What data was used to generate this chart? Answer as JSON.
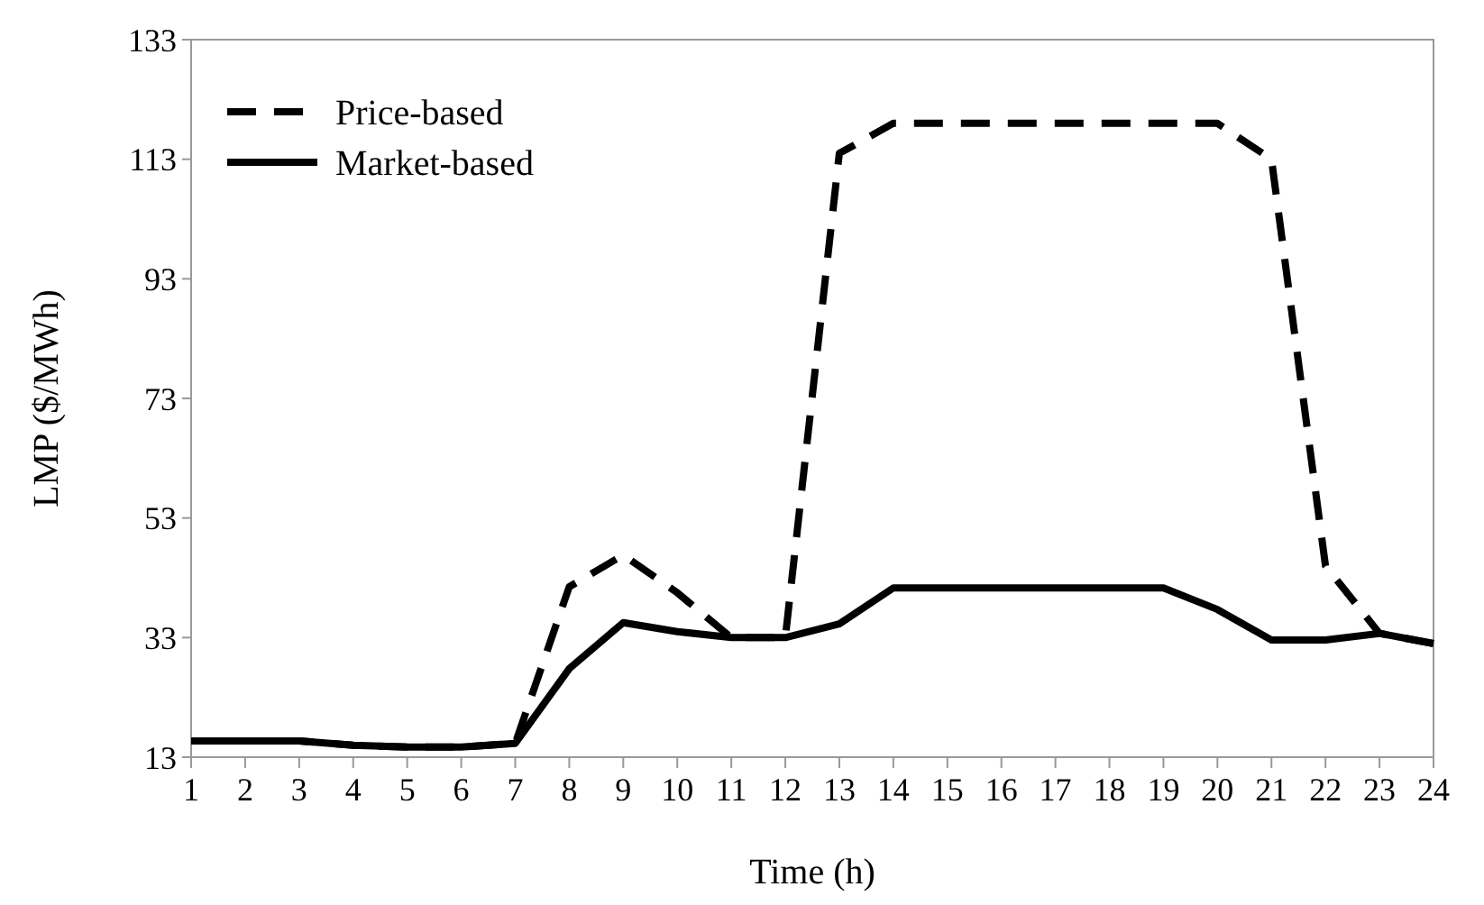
{
  "chart_data": {
    "type": "line",
    "xlabel": "Time (h)",
    "ylabel": "LMP ($/MWh)",
    "x": [
      1,
      2,
      3,
      4,
      5,
      6,
      7,
      8,
      9,
      10,
      11,
      12,
      13,
      14,
      15,
      16,
      17,
      18,
      19,
      20,
      21,
      22,
      23,
      24
    ],
    "xlim": [
      1,
      24
    ],
    "xticks": [
      1,
      2,
      3,
      4,
      5,
      6,
      7,
      8,
      9,
      10,
      11,
      12,
      13,
      14,
      15,
      16,
      17,
      18,
      19,
      20,
      21,
      22,
      23,
      24
    ],
    "ylim": [
      13,
      133
    ],
    "yticks": [
      13,
      33,
      53,
      73,
      93,
      113,
      133
    ],
    "grid": false,
    "legend": "top left",
    "marker": "none",
    "series": [
      {
        "name": "Price-based",
        "color": "#000000",
        "line_style": "dashed",
        "values": [
          15.7,
          15.7,
          15.7,
          15,
          14.7,
          14.7,
          15.3,
          41.5,
          46.8,
          40.5,
          33,
          33,
          114,
          119,
          119,
          119,
          119,
          119,
          119,
          119,
          113,
          45,
          33.7,
          32
        ]
      },
      {
        "name": "Market-based",
        "color": "#000000",
        "line_style": "solid",
        "values": [
          15.7,
          15.7,
          15.7,
          15,
          14.7,
          14.7,
          15.3,
          27.8,
          35.5,
          34,
          33,
          33,
          35.3,
          41.3,
          41.3,
          41.3,
          41.3,
          41.3,
          41.3,
          37.7,
          32.6,
          32.6,
          33.7,
          32
        ]
      }
    ]
  }
}
